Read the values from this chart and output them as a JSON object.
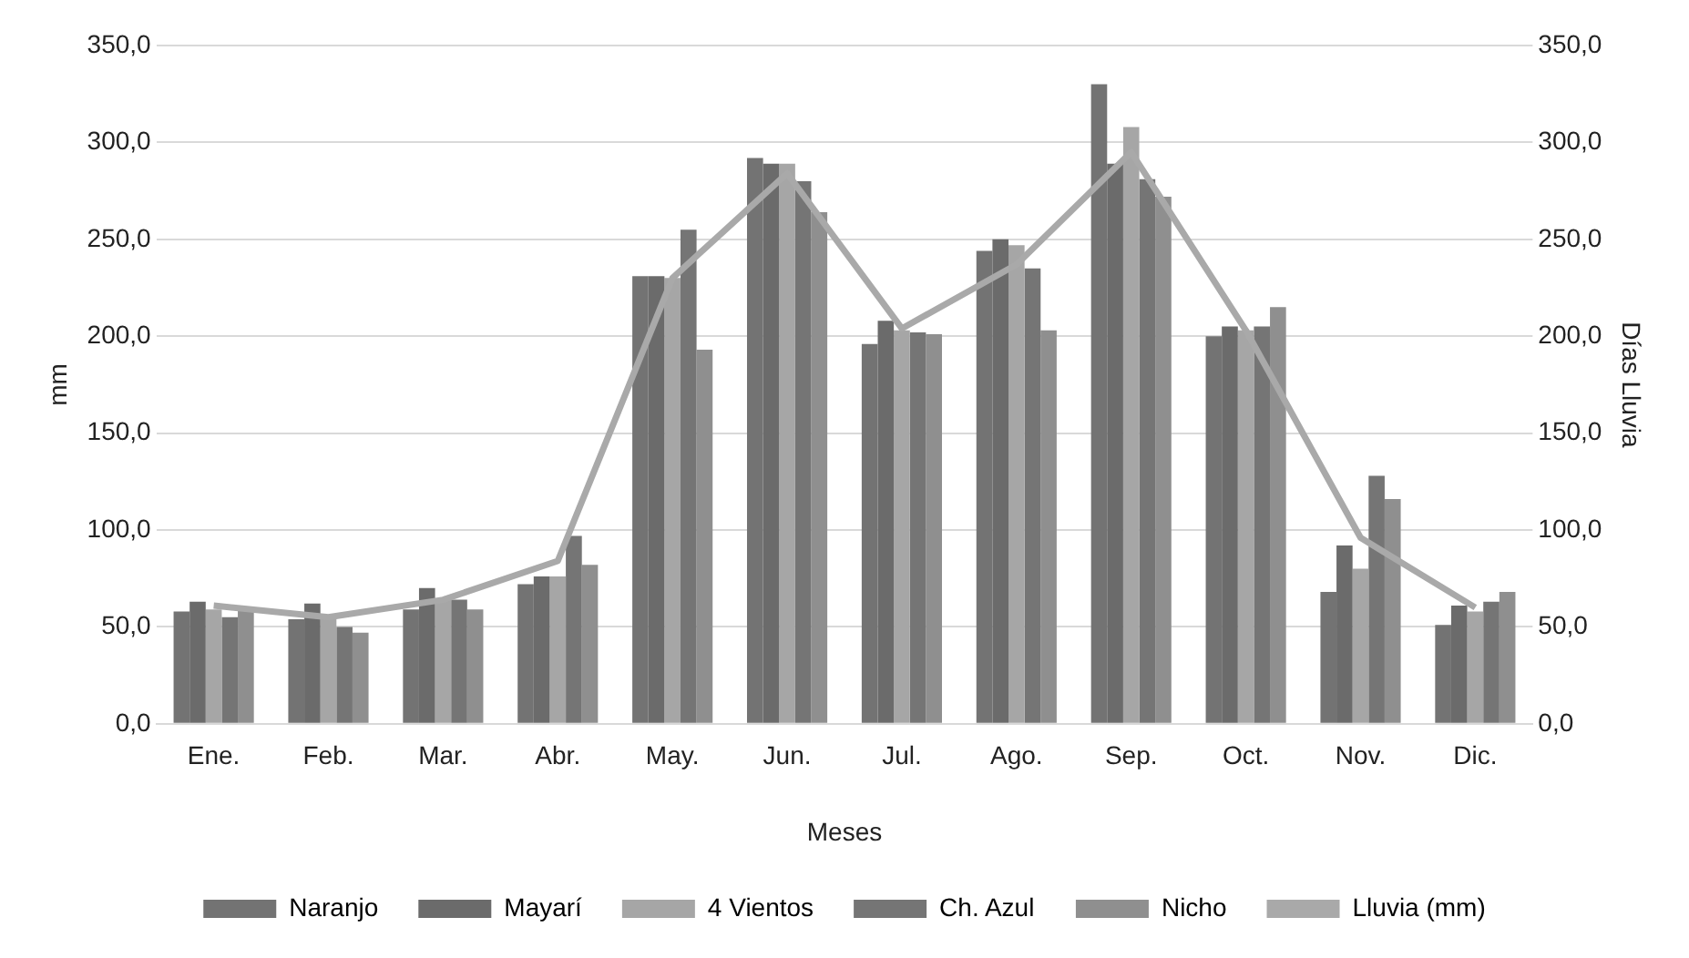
{
  "chart_data": {
    "type": "bar",
    "xlabel": "Meses",
    "ylabel": "mm",
    "y2label": "Días Lluvia",
    "categories": [
      "Ene.",
      "Feb.",
      "Mar.",
      "Abr.",
      "May.",
      "Jun.",
      "Jul.",
      "Ago.",
      "Sep.",
      "Oct.",
      "Nov.",
      "Dic."
    ],
    "series": [
      {
        "name": "Naranjo",
        "color": "#737373",
        "values": [
          58,
          54,
          59,
          72,
          231,
          292,
          196,
          244,
          330,
          200,
          68,
          51
        ]
      },
      {
        "name": "Mayarí",
        "color": "#6b6b6b",
        "values": [
          63,
          62,
          70,
          76,
          231,
          289,
          208,
          250,
          289,
          205,
          92,
          61
        ]
      },
      {
        "name": "4 Vientos",
        "color": "#a6a6a6",
        "values": [
          59,
          56,
          64,
          76,
          230,
          289,
          203,
          247,
          308,
          203,
          80,
          58
        ]
      },
      {
        "name": "Ch. Azul",
        "color": "#757575",
        "values": [
          55,
          50,
          64,
          97,
          255,
          280,
          202,
          235,
          281,
          205,
          128,
          63
        ]
      },
      {
        "name": "Nicho",
        "color": "#8f8f8f",
        "values": [
          60,
          47,
          59,
          82,
          193,
          264,
          201,
          203,
          272,
          215,
          116,
          68
        ]
      },
      {
        "name": "Lluvia (mm)",
        "type": "line",
        "axis": "y2",
        "color": "#a9a9a9",
        "values": [
          61,
          55,
          64,
          84,
          230,
          284,
          204,
          237,
          295,
          203,
          96,
          60
        ]
      }
    ],
    "ylim": [
      0,
      350
    ],
    "yticks": [
      {
        "value": 0,
        "label": "0,0"
      },
      {
        "value": 50,
        "label": "50,0"
      },
      {
        "value": 100,
        "label": "100,0"
      },
      {
        "value": 150,
        "label": "150,0"
      },
      {
        "value": 200,
        "label": "200,0"
      },
      {
        "value": 250,
        "label": "250,0"
      },
      {
        "value": 300,
        "label": "300,0"
      },
      {
        "value": 350,
        "label": "350,0"
      }
    ],
    "y2lim": [
      0,
      350
    ],
    "y2ticks": [
      {
        "value": 0,
        "label": "0,0"
      },
      {
        "value": 50,
        "label": "50,0"
      },
      {
        "value": 100,
        "label": "100,0"
      },
      {
        "value": 150,
        "label": "150,0"
      },
      {
        "value": 200,
        "label": "200,0"
      },
      {
        "value": 250,
        "label": "250,0"
      },
      {
        "value": 300,
        "label": "300,0"
      },
      {
        "value": 350,
        "label": "350,0"
      }
    ],
    "grid": "y",
    "legend": "bottom",
    "marker": "none",
    "line_style": "solid"
  }
}
